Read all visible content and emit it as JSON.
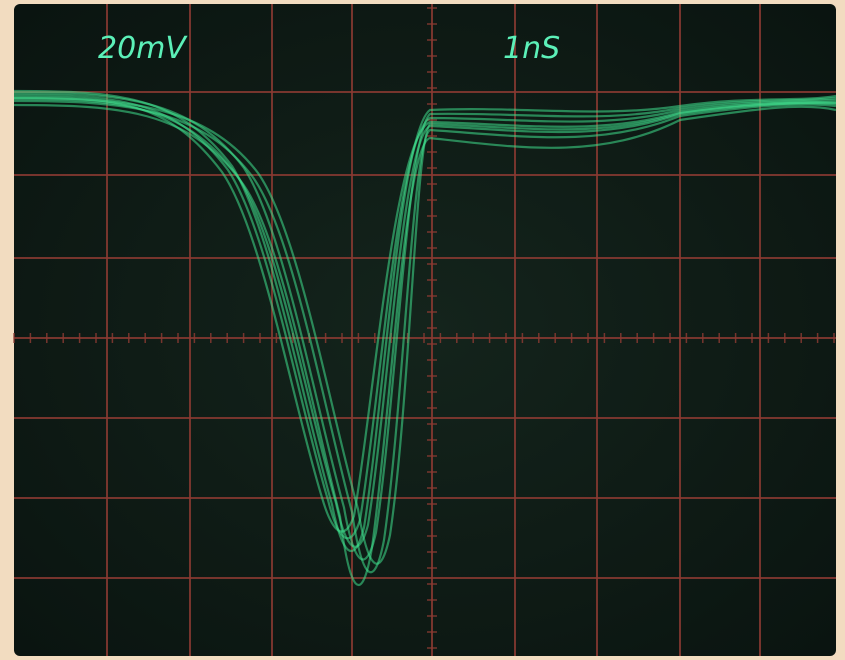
{
  "scope": {
    "volts_per_div": "20mV",
    "time_per_div": "1nS"
  }
}
